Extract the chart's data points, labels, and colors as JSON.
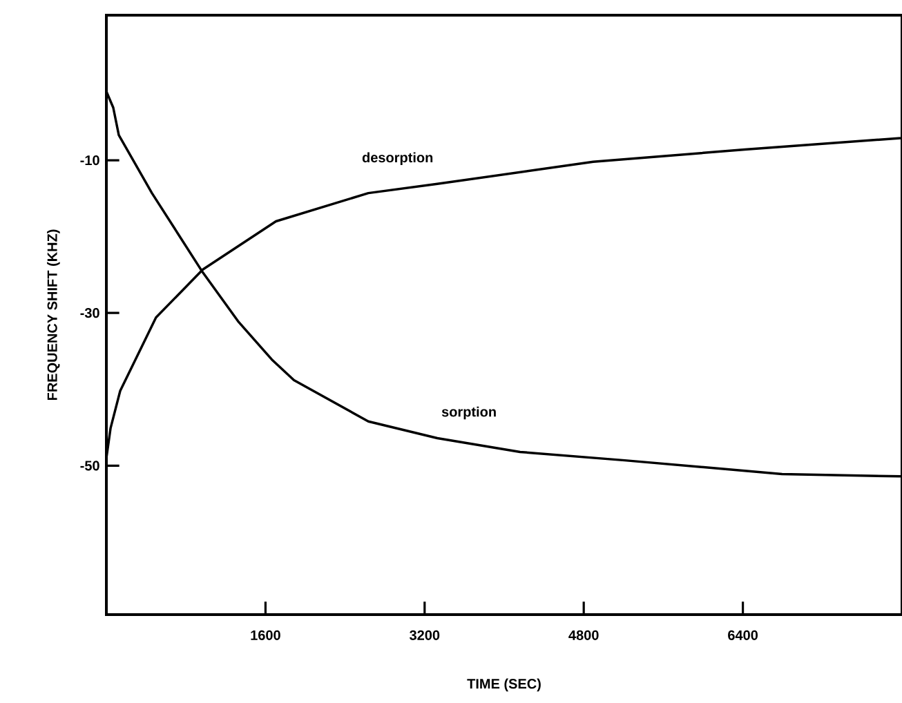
{
  "chart_data": {
    "type": "line",
    "xlabel": "TIME (SEC)",
    "ylabel": "FREQUENCY SHIFT (KHZ)",
    "xlim": [
      0,
      8000
    ],
    "ylim": [
      -69.5,
      9
    ],
    "xticks": [
      1600,
      3200,
      4800,
      6400
    ],
    "yticks": [
      -50,
      -30,
      -10
    ],
    "marker": "none",
    "line_style": "solid",
    "series": [
      {
        "name": "sorption",
        "color": "#000000",
        "x": [
          0,
          69,
          125,
          458,
          970,
          1331,
          1664,
          1886,
          2634,
          3328,
          4160,
          5213,
          6794,
          7986
        ],
        "values": [
          -1,
          -3.1,
          -6.7,
          -14.3,
          -24.7,
          -31.2,
          -36.1,
          -38.8,
          -44.2,
          -46.4,
          -48.2,
          -49.3,
          -51.1,
          -51.4
        ]
      },
      {
        "name": "desorption",
        "color": "#000000",
        "x": [
          0,
          42,
          139,
          499,
          970,
          1705,
          2634,
          3328,
          4895,
          6420,
          7986
        ],
        "values": [
          -49,
          -45.1,
          -40.2,
          -30.6,
          -24.3,
          -18,
          -14.3,
          -13.1,
          -10.2,
          -8.6,
          -7.1
        ]
      }
    ]
  }
}
